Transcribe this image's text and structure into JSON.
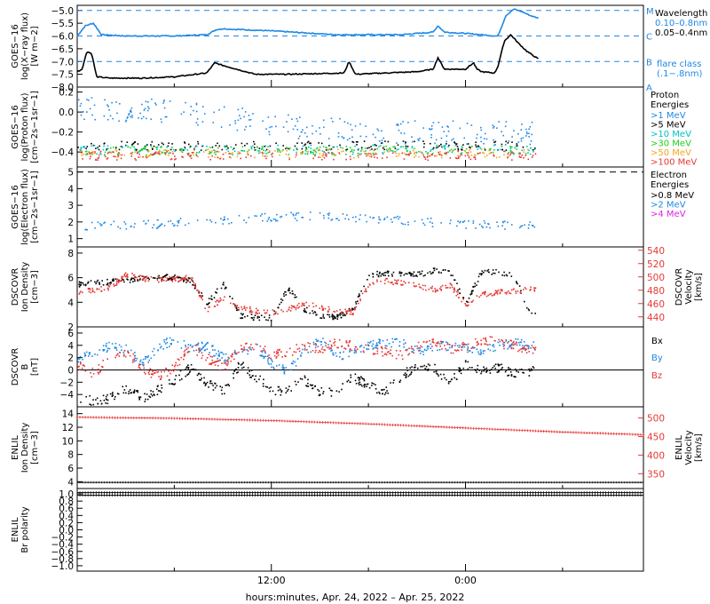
{
  "chart_data": {
    "type": "line",
    "xlabel": "hours:minutes, Apr. 24, 2022 – Apr. 25, 2022",
    "x_ticks": [
      "12:00",
      "0:00"
    ],
    "panels": [
      {
        "ylabel_lines": [
          "GOES−16",
          "log(X−ray flux)",
          "[W m−2]"
        ],
        "yticks": [
          "−5.0",
          "−5.5",
          "−6.0",
          "−6.5",
          "−7.0",
          "−7.5",
          "−8.0"
        ],
        "ylim": [
          -8.0,
          -4.8
        ],
        "flare_levels": [
          {
            "label": "M",
            "y": -5.0
          },
          {
            "label": "C",
            "y": -6.0
          },
          {
            "label": "B",
            "y": -7.0
          },
          {
            "label": "A",
            "y": -8.0
          }
        ],
        "legend": [
          "Wavelength",
          "0.10–0.8nm",
          "0.05–0.4nm",
          "flare class",
          "(.1−.8nm)"
        ],
        "series": [
          {
            "name": "0.10–0.8nm",
            "color": "#1e88e5",
            "x": [
              0.0,
              0.5,
              1.0,
              1.5,
              3.0,
              6.0,
              8.0,
              8.6,
              9.0,
              12.0,
              16.0,
              20.0,
              22.0,
              22.3,
              22.7,
              24.0,
              25.0,
              25.8,
              26.0,
              26.5,
              27.0,
              27.5,
              28.0,
              28.5
            ],
            "y": [
              -6.0,
              -5.6,
              -5.5,
              -5.95,
              -6.0,
              -6.0,
              -5.95,
              -5.75,
              -5.72,
              -5.8,
              -5.95,
              -5.95,
              -5.85,
              -5.6,
              -5.85,
              -5.9,
              -5.95,
              -6.0,
              -6.0,
              -5.2,
              -4.95,
              -5.05,
              -5.2,
              -5.3
            ]
          },
          {
            "name": "0.05–0.4nm",
            "color": "#000000",
            "x": [
              0.0,
              0.3,
              0.6,
              0.9,
              1.2,
              2.0,
              4.0,
              6.0,
              8.0,
              8.5,
              9.0,
              11.0,
              13.0,
              16.5,
              16.8,
              17.2,
              19.0,
              21.0,
              22.0,
              22.3,
              22.7,
              24.0,
              24.5,
              24.7,
              25.0,
              25.8,
              26.0,
              26.4,
              26.8,
              27.3,
              27.8,
              28.5
            ],
            "y": [
              -7.4,
              -7.3,
              -6.6,
              -6.7,
              -7.6,
              -7.65,
              -7.65,
              -7.6,
              -7.45,
              -7.05,
              -7.15,
              -7.5,
              -7.5,
              -7.45,
              -7.0,
              -7.5,
              -7.45,
              -7.4,
              -7.3,
              -6.85,
              -7.3,
              -7.3,
              -7.05,
              -7.3,
              -7.4,
              -7.45,
              -7.2,
              -6.2,
              -5.95,
              -6.3,
              -6.6,
              -6.9
            ]
          }
        ]
      },
      {
        "ylabel_lines": [
          "GOES−16",
          "log(Proton flux)",
          "[cm−2s−1sr−1]"
        ],
        "yticks": [
          "0.2",
          "0.0",
          "−0.2",
          "−0.4"
        ],
        "ylim": [
          -0.55,
          0.25
        ],
        "legend_title": [
          "Proton",
          "Energies"
        ],
        "series": [
          {
            "name": ">1 MeV",
            "color": "#1e88e5",
            "center": [
              0.05,
              0.0,
              -0.15,
              -0.2,
              -0.2
            ]
          },
          {
            "name": ">5 MeV",
            "color": "#000000",
            "center": [
              -0.33,
              -0.33,
              -0.33,
              -0.33,
              -0.33
            ]
          },
          {
            "name": ">10 MeV",
            "color": "#00c2c2",
            "center": [
              -0.37,
              -0.37,
              -0.37,
              -0.37,
              -0.37
            ]
          },
          {
            "name": ">30 MeV",
            "color": "#22cc22",
            "center": [
              -0.38,
              -0.38,
              -0.38,
              -0.38,
              -0.38
            ]
          },
          {
            "name": ">50 MeV",
            "color": "#f5a623",
            "center": [
              -0.41,
              -0.41,
              -0.41,
              -0.41,
              -0.41
            ]
          },
          {
            "name": ">100 MeV",
            "color": "#e53935",
            "center": [
              -0.43,
              -0.43,
              -0.43,
              -0.43,
              -0.43
            ]
          }
        ]
      },
      {
        "ylabel_lines": [
          "GOES−16",
          "log(Electron flux)",
          "[cm−2s−1sr−1]"
        ],
        "yticks": [
          "5",
          "4",
          "3",
          "2",
          "1"
        ],
        "ylim": [
          0.5,
          5.3
        ],
        "dashed_level": 5.0,
        "legend_title": [
          "Electron",
          "Energies"
        ],
        "series": [
          {
            "name": ">0.8 MeV",
            "color": "#000000",
            "center": []
          },
          {
            "name": ">2 MeV",
            "color": "#1e88e5",
            "center": [
              1.8,
              1.9,
              2.2,
              2.4,
              2.2,
              1.9,
              1.8
            ]
          },
          {
            "name": ">4 MeV",
            "color": "#e020e0",
            "center": []
          }
        ]
      },
      {
        "ylabel_lines": [
          "DSCOVR",
          "Ion Density",
          "[cm−3]"
        ],
        "yticks": [
          "8",
          "6",
          "4",
          "2"
        ],
        "ylim": [
          2,
          8.5
        ],
        "y2label_lines": [
          "DSCOVR",
          "Velocity",
          "[km/s]"
        ],
        "y2ticks": [
          "540",
          "520",
          "500",
          "480",
          "460",
          "440"
        ],
        "y2lim": [
          425,
          545
        ],
        "series": [
          {
            "name": "Density",
            "color": "#000000",
            "x": [
              0,
              2,
              4,
              6,
              7,
              8,
              9,
              10,
              11,
              12,
              13,
              14,
              15,
              16,
              17,
              18,
              19,
              20,
              21,
              22,
              23,
              24,
              25,
              26,
              27,
              28
            ],
            "y": [
              5.5,
              5.7,
              6.0,
              6.1,
              5.8,
              4.0,
              5.5,
              3.0,
              2.8,
              2.8,
              5.2,
              3.5,
              3.0,
              2.8,
              3.5,
              6.3,
              6.4,
              6.4,
              6.3,
              6.6,
              6.5,
              4.0,
              6.6,
              6.5,
              6.2,
              3.0
            ]
          },
          {
            "name": "Velocity",
            "color": "#e53935",
            "axis": "right",
            "x": [
              0,
              2,
              3,
              4,
              6,
              7,
              8,
              9,
              10,
              11,
              12,
              13,
              14,
              15,
              16,
              17,
              18,
              19,
              20,
              21,
              22,
              23,
              24,
              25,
              26,
              27,
              28
            ],
            "y": [
              478,
              485,
              505,
              498,
              497,
              500,
              450,
              470,
              455,
              450,
              448,
              452,
              460,
              455,
              450,
              448,
              490,
              495,
              492,
              488,
              482,
              488,
              460,
              475,
              478,
              480,
              482
            ]
          }
        ]
      },
      {
        "ylabel_lines": [
          "DSCOVR",
          "B",
          "[nT]"
        ],
        "yticks": [
          "6",
          "4",
          "2",
          "0",
          "−2",
          "−4"
        ],
        "ylim": [
          -6,
          7
        ],
        "legend": [
          "Bx",
          "By",
          "Bz"
        ],
        "series": [
          {
            "name": "Bx",
            "color": "#000000",
            "x": [
              0,
              1,
              2,
              3,
              4,
              5,
              6,
              7,
              8,
              9,
              10,
              11,
              12,
              13,
              14,
              15,
              16,
              17,
              18,
              19,
              20,
              21,
              22,
              23,
              24,
              25,
              26,
              27,
              28
            ],
            "y": [
              -4.5,
              -5.0,
              -4.5,
              -3.0,
              -4.5,
              -3.0,
              -1.5,
              0.5,
              -2.0,
              -3.5,
              1.0,
              -1.0,
              -3.5,
              -3.0,
              -1.5,
              -3.5,
              -3.5,
              -1.0,
              -2.5,
              -3.5,
              -1.0,
              1.0,
              0.5,
              -2.0,
              1.0,
              0.0,
              0.5,
              -0.5,
              0.0
            ]
          },
          {
            "name": "By",
            "color": "#1e88e5",
            "x": [
              0,
              1,
              2,
              3,
              4,
              5,
              6,
              7,
              8,
              9,
              10,
              11,
              12,
              13,
              14,
              15,
              16,
              17,
              18,
              19,
              20,
              21,
              22,
              23,
              24,
              25,
              26,
              27,
              28
            ],
            "y": [
              1.5,
              3.0,
              4.0,
              3.5,
              1.0,
              4.0,
              5.0,
              3.5,
              4.0,
              2.0,
              3.0,
              4.0,
              1.0,
              0.0,
              3.0,
              5.0,
              2.0,
              3.0,
              4.0,
              4.5,
              4.5,
              3.0,
              4.0,
              4.0,
              3.5,
              3.0,
              4.0,
              4.5,
              4.0
            ]
          },
          {
            "name": "Bz",
            "color": "#e53935",
            "x": [
              0,
              1,
              2,
              3,
              4,
              5,
              6,
              7,
              8,
              9,
              10,
              11,
              12,
              13,
              14,
              15,
              16,
              17,
              18,
              19,
              20,
              21,
              22,
              23,
              24,
              25,
              26,
              27,
              28
            ],
            "y": [
              1.0,
              -0.5,
              2.0,
              3.0,
              0.5,
              -1.0,
              0.5,
              4.0,
              2.0,
              0.5,
              3.5,
              4.0,
              2.5,
              3.0,
              4.0,
              3.5,
              4.5,
              4.0,
              3.5,
              3.0,
              2.5,
              4.0,
              4.5,
              3.5,
              4.0,
              5.0,
              4.5,
              4.0,
              3.5
            ]
          }
        ]
      },
      {
        "ylabel_lines": [
          "ENLIL",
          "Ion Density",
          "[cm−3]"
        ],
        "yticks": [
          "14",
          "12",
          "10",
          "8",
          "6",
          "4"
        ],
        "ylim": [
          3,
          15
        ],
        "y2label_lines": [
          "ENLIL",
          "Velocity",
          "[km/s]"
        ],
        "y2ticks": [
          "500",
          "450",
          "400",
          "350"
        ],
        "y2lim": [
          310,
          530
        ],
        "series": [
          {
            "name": "Density",
            "color": "#000000",
            "x": [
              0,
              35
            ],
            "y": [
              3.9,
              3.9
            ]
          },
          {
            "name": "Velocity",
            "color": "#e53935",
            "axis": "right",
            "x": [
              0,
              6,
              12,
              18,
              24,
              30,
              35
            ],
            "y": [
              502,
              499,
              493,
              484,
              473,
              462,
              455
            ]
          }
        ]
      },
      {
        "ylabel_lines": [
          "ENLIL",
          "Br polarity"
        ],
        "yticks": [
          "1.0",
          "0.8",
          "0.6",
          "0.4",
          "0.2",
          "0.0",
          "−0.2",
          "−0.4",
          "−0.6",
          "−0.8",
          "−1.0"
        ],
        "ylim": [
          -1.15,
          1.15
        ],
        "series": [
          {
            "name": "Polarity",
            "color": "#000000",
            "x": [
              0,
              35
            ],
            "y": [
              1.0,
              1.0
            ]
          }
        ]
      }
    ]
  }
}
